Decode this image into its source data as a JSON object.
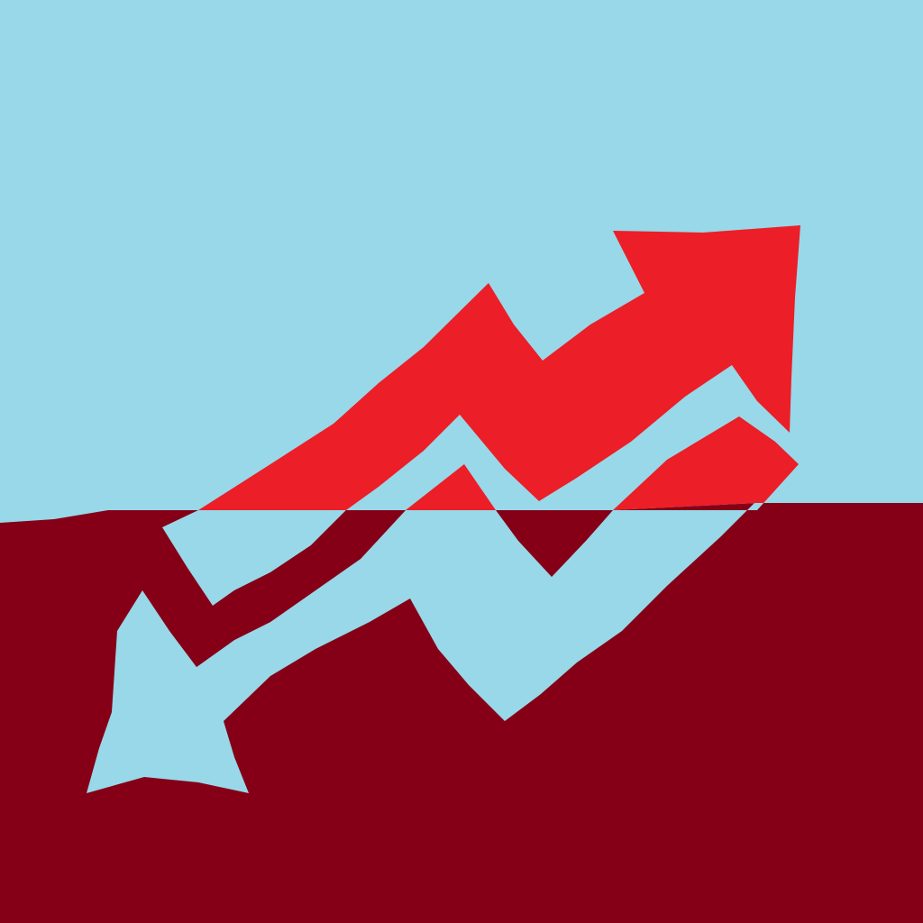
{
  "artwork": {
    "description_visible_text": "",
    "colors": {
      "sky": "#98D8E8",
      "ground": "#850017",
      "arrow_up": "#EC1E27",
      "arrow_down_cutout": "#98D8E8",
      "arrow_up_in_ground": "#850017"
    },
    "icons": [
      "trend-up-arrow-icon",
      "trend-down-arrow-icon"
    ]
  }
}
